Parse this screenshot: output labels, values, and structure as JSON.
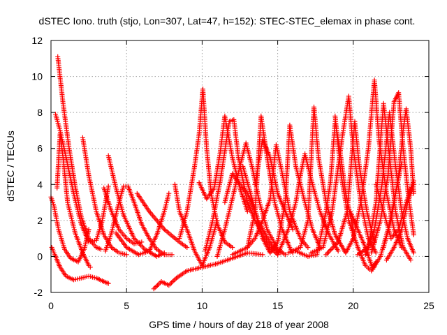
{
  "chart_data": {
    "type": "scatter",
    "title": "dSTEC Iono. truth (stjo, Lon=307, Lat=47, h=152): STEC-STEC_elemax in phase cont.",
    "xlabel": "GPS time / hours of day 218 of year 2008",
    "ylabel": "dSTEC  / TECUs",
    "xlim": [
      0,
      25
    ],
    "ylim": [
      -2,
      12
    ],
    "xticks": [
      0,
      5,
      10,
      15,
      20,
      25
    ],
    "yticks": [
      -2,
      0,
      2,
      4,
      6,
      8,
      10,
      12
    ],
    "xtick_labels": [
      "0",
      "5",
      "10",
      "15",
      "20",
      "25"
    ],
    "ytick_labels": [
      "-2",
      "0",
      "2",
      "4",
      "6",
      "8",
      "10",
      "12"
    ],
    "grid": true,
    "marker": "plus",
    "color": "#ff0000",
    "arcs": [
      [
        [
          0.05,
          0.5
        ],
        [
          0.25,
          0.1
        ],
        [
          0.6,
          -0.6
        ],
        [
          1.0,
          -1.1
        ],
        [
          1.5,
          -1.3
        ],
        [
          2.0,
          -1.2
        ],
        [
          2.5,
          -1.1
        ],
        [
          3.0,
          -1.2
        ],
        [
          3.5,
          -1.4
        ],
        [
          3.8,
          -1.5
        ]
      ],
      [
        [
          0.0,
          3.3
        ],
        [
          0.2,
          2.8
        ],
        [
          0.5,
          1.5
        ],
        [
          0.9,
          0.4
        ],
        [
          1.3,
          -0.1
        ],
        [
          1.8,
          -0.3
        ],
        [
          2.2,
          0.4
        ],
        [
          2.5,
          1.5
        ]
      ],
      [
        [
          0.3,
          7.9
        ],
        [
          0.6,
          7.0
        ],
        [
          1.0,
          5.5
        ],
        [
          1.5,
          3.5
        ],
        [
          2.0,
          1.8
        ],
        [
          2.5,
          0.8
        ],
        [
          3.0,
          0.9
        ],
        [
          3.4,
          2.0
        ],
        [
          3.8,
          3.9
        ]
      ],
      [
        [
          0.45,
          11.1
        ],
        [
          0.8,
          8.5
        ],
        [
          1.2,
          6.0
        ],
        [
          1.6,
          3.9
        ],
        [
          2.0,
          2.2
        ],
        [
          2.5,
          1.0
        ],
        [
          3.0,
          0.5
        ],
        [
          3.3,
          0.4
        ]
      ],
      [
        [
          0.4,
          3.8
        ],
        [
          0.6,
          6.8
        ],
        [
          0.8,
          5.5
        ],
        [
          1.1,
          3.0
        ],
        [
          1.6,
          1.3
        ],
        [
          2.1,
          0.2
        ],
        [
          2.5,
          -0.5
        ],
        [
          2.6,
          -0.6
        ]
      ],
      [
        [
          2.1,
          6.6
        ],
        [
          2.5,
          4.5
        ],
        [
          3.0,
          2.5
        ],
        [
          3.5,
          1.2
        ],
        [
          4.0,
          0.5
        ],
        [
          4.5,
          0.2
        ],
        [
          5.0,
          0.1
        ]
      ],
      [
        [
          3.8,
          5.6
        ],
        [
          4.3,
          3.8
        ],
        [
          4.8,
          2.3
        ],
        [
          5.5,
          1.0
        ],
        [
          6.2,
          0.4
        ],
        [
          7.0,
          0.0
        ],
        [
          7.5,
          0.2
        ]
      ],
      [
        [
          3.5,
          3.8
        ],
        [
          4.0,
          2.5
        ],
        [
          4.5,
          1.5
        ],
        [
          5.0,
          1.0
        ],
        [
          5.5,
          0.7
        ],
        [
          6.0,
          0.8
        ]
      ],
      [
        [
          3.6,
          0.3
        ],
        [
          4.0,
          1.3
        ],
        [
          4.5,
          3.0
        ],
        [
          4.8,
          3.9
        ],
        [
          5.1,
          3.9
        ],
        [
          5.5,
          3.0
        ],
        [
          6.0,
          1.8
        ],
        [
          6.5,
          1.0
        ],
        [
          7.0,
          0.4
        ],
        [
          7.5,
          0.1
        ],
        [
          8.0,
          0.1
        ]
      ],
      [
        [
          4.3,
          1.3
        ],
        [
          5.0,
          0.5
        ],
        [
          5.8,
          0.1
        ],
        [
          6.5,
          0.3
        ],
        [
          7.0,
          1.2
        ],
        [
          7.5,
          2.5
        ],
        [
          7.8,
          3.5
        ]
      ],
      [
        [
          5.7,
          3.5
        ],
        [
          6.5,
          2.5
        ],
        [
          7.5,
          1.5
        ],
        [
          8.5,
          0.8
        ],
        [
          9.0,
          0.5
        ]
      ],
      [
        [
          6.8,
          -1.8
        ],
        [
          7.3,
          -1.4
        ],
        [
          7.8,
          -1.6
        ],
        [
          8.3,
          -1.2
        ],
        [
          9.0,
          -0.8
        ],
        [
          10.0,
          -0.6
        ],
        [
          11.0,
          -0.4
        ],
        [
          12.0,
          -0.1
        ],
        [
          13.0,
          0.2
        ],
        [
          14.0,
          0.1
        ]
      ],
      [
        [
          8.2,
          4.0
        ],
        [
          8.5,
          2.5
        ],
        [
          9.0,
          1.5
        ],
        [
          9.5,
          0.3
        ],
        [
          10.0,
          -0.5
        ],
        [
          10.5,
          0.5
        ],
        [
          11.0,
          2.0
        ]
      ],
      [
        [
          8.5,
          1.0
        ],
        [
          9.0,
          2.5
        ],
        [
          9.5,
          5.0
        ],
        [
          9.8,
          6.8
        ],
        [
          10.05,
          9.3
        ],
        [
          10.3,
          6.0
        ],
        [
          10.6,
          3.5
        ],
        [
          11.0,
          1.8
        ],
        [
          11.5,
          0.8
        ],
        [
          12.0,
          0.5
        ]
      ],
      [
        [
          9.8,
          4.1
        ],
        [
          10.3,
          3.2
        ],
        [
          10.8,
          3.8
        ],
        [
          11.2,
          5.8
        ],
        [
          11.5,
          7.8
        ],
        [
          12.0,
          5.5
        ],
        [
          12.5,
          3.8
        ],
        [
          13.0,
          2.5
        ]
      ],
      [
        [
          10.2,
          0.3
        ],
        [
          10.7,
          2.0
        ],
        [
          11.2,
          4.2
        ],
        [
          11.8,
          7.5
        ],
        [
          12.1,
          7.6
        ],
        [
          12.4,
          5.5
        ],
        [
          13.0,
          3.0
        ],
        [
          13.5,
          2.0
        ],
        [
          14.0,
          1.2
        ],
        [
          14.5,
          0.5
        ],
        [
          15.0,
          0.1
        ]
      ],
      [
        [
          11.0,
          0.0
        ],
        [
          11.5,
          1.5
        ],
        [
          12.0,
          3.2
        ],
        [
          12.5,
          5.0
        ],
        [
          12.9,
          6.3
        ],
        [
          13.3,
          5.0
        ],
        [
          13.8,
          3.0
        ],
        [
          14.3,
          1.5
        ],
        [
          15.0,
          0.4
        ],
        [
          15.5,
          0.1
        ]
      ],
      [
        [
          11.5,
          3.0
        ],
        [
          12.0,
          4.6
        ],
        [
          12.5,
          4.0
        ],
        [
          13.0,
          3.5
        ],
        [
          13.5,
          2.5
        ],
        [
          14.0,
          1.0
        ],
        [
          14.5,
          0.2
        ]
      ],
      [
        [
          12.0,
          0.1
        ],
        [
          13.0,
          0.5
        ],
        [
          13.5,
          2.5
        ],
        [
          13.9,
          7.8
        ],
        [
          14.3,
          5.5
        ],
        [
          14.8,
          3.0
        ],
        [
          15.3,
          1.5
        ],
        [
          15.8,
          0.5
        ],
        [
          16.0,
          0.2
        ]
      ],
      [
        [
          12.7,
          5.0
        ],
        [
          13.2,
          3.5
        ],
        [
          13.7,
          2.0
        ],
        [
          14.2,
          1.2
        ],
        [
          14.7,
          0.5
        ],
        [
          15.2,
          0.2
        ]
      ],
      [
        [
          13.0,
          0.5
        ],
        [
          13.5,
          1.0
        ],
        [
          14.0,
          2.0
        ],
        [
          14.5,
          3.2
        ],
        [
          14.9,
          6.2
        ],
        [
          15.3,
          4.6
        ],
        [
          15.8,
          2.5
        ],
        [
          16.5,
          1.0
        ],
        [
          17.0,
          0.5
        ]
      ],
      [
        [
          13.5,
          4.0
        ],
        [
          14.0,
          6.5
        ],
        [
          14.5,
          5.5
        ],
        [
          15.0,
          3.5
        ],
        [
          15.5,
          2.5
        ],
        [
          16.0,
          1.5
        ]
      ],
      [
        [
          14.5,
          0.2
        ],
        [
          15.0,
          0.8
        ],
        [
          15.5,
          3.0
        ],
        [
          15.8,
          7.3
        ],
        [
          16.2,
          5.0
        ],
        [
          16.8,
          3.0
        ],
        [
          17.3,
          1.5
        ],
        [
          17.8,
          0.5
        ]
      ],
      [
        [
          15.0,
          0.1
        ],
        [
          15.7,
          1.5
        ],
        [
          16.2,
          3.0
        ],
        [
          16.5,
          4.5
        ],
        [
          16.8,
          5.7
        ],
        [
          17.3,
          4.0
        ],
        [
          17.8,
          2.5
        ],
        [
          18.4,
          1.2
        ],
        [
          19.0,
          0.3
        ]
      ],
      [
        [
          15.7,
          0.2
        ],
        [
          16.5,
          0.5
        ],
        [
          17.0,
          2.0
        ],
        [
          17.4,
          8.3
        ],
        [
          17.7,
          5.5
        ],
        [
          18.2,
          3.0
        ],
        [
          18.8,
          1.2
        ],
        [
          19.5,
          0.2
        ]
      ],
      [
        [
          16.2,
          0.3
        ],
        [
          17.0,
          0.0
        ],
        [
          17.6,
          0.1
        ],
        [
          18.2,
          2.5
        ],
        [
          18.5,
          4.2
        ],
        [
          18.8,
          7.5
        ],
        [
          19.1,
          6.0
        ],
        [
          19.5,
          3.5
        ],
        [
          20.0,
          1.5
        ]
      ],
      [
        [
          17.2,
          0.2
        ],
        [
          18.0,
          0.5
        ],
        [
          18.6,
          2.5
        ],
        [
          19.3,
          6.8
        ],
        [
          19.7,
          8.9
        ],
        [
          20.0,
          6.0
        ],
        [
          20.5,
          3.0
        ],
        [
          21.0,
          1.0
        ],
        [
          21.5,
          0.2
        ]
      ],
      [
        [
          18.2,
          0.1
        ],
        [
          19.0,
          0.8
        ],
        [
          19.6,
          2.5
        ],
        [
          20.1,
          7.5
        ],
        [
          20.4,
          5.0
        ],
        [
          20.9,
          2.5
        ],
        [
          21.4,
          0.8
        ]
      ],
      [
        [
          18.8,
          7.8
        ],
        [
          19.2,
          4.5
        ],
        [
          19.7,
          2.0
        ],
        [
          20.3,
          0.5
        ],
        [
          20.8,
          -0.5
        ],
        [
          21.2,
          -0.8
        ],
        [
          21.5,
          -0.3
        ]
      ],
      [
        [
          19.5,
          0.2
        ],
        [
          20.0,
          1.0
        ],
        [
          20.5,
          3.0
        ],
        [
          21.0,
          6.0
        ],
        [
          21.4,
          9.8
        ],
        [
          21.7,
          6.5
        ],
        [
          22.2,
          3.5
        ],
        [
          22.7,
          1.5
        ],
        [
          23.2,
          0.5
        ]
      ],
      [
        [
          19.8,
          2.5
        ],
        [
          20.3,
          1.5
        ],
        [
          20.8,
          0.5
        ],
        [
          21.3,
          -0.7
        ],
        [
          21.8,
          0.0
        ],
        [
          22.3,
          1.5
        ],
        [
          22.8,
          3.5
        ],
        [
          23.2,
          5.2
        ]
      ],
      [
        [
          20.3,
          0.1
        ],
        [
          21.0,
          0.5
        ],
        [
          21.5,
          3.0
        ],
        [
          22.0,
          8.5
        ],
        [
          22.4,
          5.5
        ],
        [
          22.8,
          2.5
        ],
        [
          23.3,
          0.5
        ],
        [
          23.8,
          -0.2
        ]
      ],
      [
        [
          20.8,
          0.1
        ],
        [
          21.4,
          1.5
        ],
        [
          21.9,
          4.0
        ],
        [
          22.4,
          8.0
        ],
        [
          22.8,
          5.0
        ],
        [
          23.2,
          2.5
        ],
        [
          23.6,
          1.0
        ],
        [
          24.0,
          0.2
        ]
      ],
      [
        [
          21.2,
          0.2
        ],
        [
          21.8,
          2.0
        ],
        [
          22.3,
          4.5
        ],
        [
          22.7,
          8.6
        ],
        [
          23.0,
          9.1
        ],
        [
          23.3,
          6.0
        ],
        [
          23.7,
          3.0
        ],
        [
          24.0,
          1.2
        ]
      ],
      [
        [
          21.5,
          4.0
        ],
        [
          22.0,
          2.5
        ],
        [
          22.5,
          1.0
        ],
        [
          23.0,
          1.5
        ],
        [
          23.5,
          3.0
        ],
        [
          24.0,
          4.2
        ]
      ],
      [
        [
          22.0,
          0.5
        ],
        [
          22.5,
          2.0
        ],
        [
          23.0,
          4.5
        ],
        [
          23.3,
          7.0
        ],
        [
          23.5,
          8.2
        ],
        [
          23.8,
          6.0
        ],
        [
          24.0,
          3.5
        ]
      ],
      [
        [
          22.2,
          -0.2
        ],
        [
          22.7,
          0.5
        ],
        [
          23.2,
          1.5
        ],
        [
          23.6,
          3.0
        ],
        [
          24.0,
          4.0
        ]
      ]
    ]
  }
}
